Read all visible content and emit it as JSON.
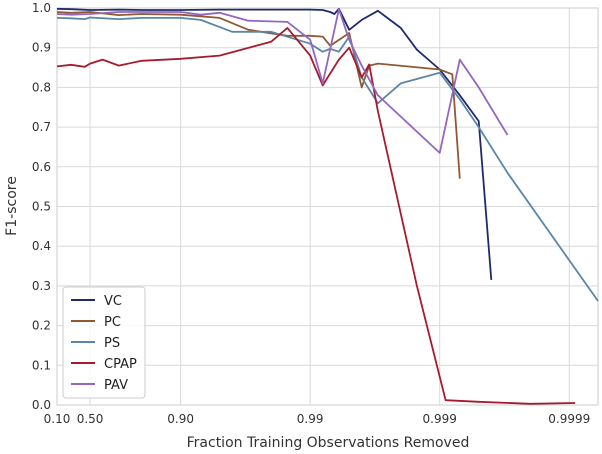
{
  "chart_data": {
    "type": "line",
    "xlabel": "Fraction Training Observations Removed",
    "ylabel": "F1-score",
    "x_scale": "log10(1-x) reversed",
    "xlim": [
      0.1,
      0.99994
    ],
    "ylim": [
      0.0,
      1.0
    ],
    "x_ticks": [
      0.1,
      0.5,
      0.9,
      0.99,
      0.999,
      0.9999
    ],
    "x_tick_labels": [
      "0.10",
      "0.50",
      "0.90",
      "0.99",
      "0.999",
      "0.9999"
    ],
    "y_ticks": [
      0.0,
      0.1,
      0.2,
      0.3,
      0.4,
      0.5,
      0.6,
      0.7,
      0.8,
      0.9,
      1.0
    ],
    "y_tick_labels": [
      "0.0",
      "0.1",
      "0.2",
      "0.3",
      "0.4",
      "0.5",
      "0.6",
      "0.7",
      "0.8",
      "0.9",
      "1.0"
    ],
    "grid": true,
    "legend_position": "bottom-left",
    "series": [
      {
        "name": "VC",
        "color": "#1f2a6e",
        "points": [
          [
            0.1,
            0.998
          ],
          [
            0.3,
            0.997
          ],
          [
            0.5,
            0.995
          ],
          [
            0.7,
            0.996
          ],
          [
            0.8,
            0.995
          ],
          [
            0.9,
            0.995
          ],
          [
            0.95,
            0.996
          ],
          [
            0.98,
            0.996
          ],
          [
            0.99,
            0.996
          ],
          [
            0.992,
            0.995
          ],
          [
            0.993,
            0.99
          ],
          [
            0.9935,
            0.985
          ],
          [
            0.994,
            0.998
          ],
          [
            0.995,
            0.945
          ],
          [
            0.996,
            0.97
          ],
          [
            0.997,
            0.993
          ],
          [
            0.998,
            0.95
          ],
          [
            0.9985,
            0.895
          ],
          [
            0.999,
            0.845
          ],
          [
            0.9993,
            0.78
          ],
          [
            0.9995,
            0.715
          ],
          [
            0.9996,
            0.315
          ]
        ]
      },
      {
        "name": "PC",
        "color": "#8f5a33",
        "points": [
          [
            0.1,
            0.99
          ],
          [
            0.3,
            0.988
          ],
          [
            0.5,
            0.99
          ],
          [
            0.7,
            0.982
          ],
          [
            0.8,
            0.985
          ],
          [
            0.9,
            0.983
          ],
          [
            0.95,
            0.975
          ],
          [
            0.97,
            0.945
          ],
          [
            0.985,
            0.93
          ],
          [
            0.99,
            0.93
          ],
          [
            0.992,
            0.928
          ],
          [
            0.993,
            0.905
          ],
          [
            0.995,
            0.937
          ],
          [
            0.996,
            0.8
          ],
          [
            0.9965,
            0.855
          ],
          [
            0.997,
            0.86
          ],
          [
            0.999,
            0.845
          ],
          [
            0.9992,
            0.833
          ],
          [
            0.9993,
            0.57
          ]
        ]
      },
      {
        "name": "PS",
        "color": "#5b86a8",
        "points": [
          [
            0.1,
            0.975
          ],
          [
            0.3,
            0.974
          ],
          [
            0.45,
            0.972
          ],
          [
            0.5,
            0.976
          ],
          [
            0.7,
            0.972
          ],
          [
            0.8,
            0.975
          ],
          [
            0.9,
            0.975
          ],
          [
            0.93,
            0.97
          ],
          [
            0.96,
            0.94
          ],
          [
            0.98,
            0.94
          ],
          [
            0.99,
            0.91
          ],
          [
            0.992,
            0.89
          ],
          [
            0.993,
            0.897
          ],
          [
            0.994,
            0.89
          ],
          [
            0.995,
            0.928
          ],
          [
            0.996,
            0.825
          ],
          [
            0.997,
            0.76
          ],
          [
            0.998,
            0.81
          ],
          [
            0.999,
            0.837
          ],
          [
            0.9993,
            0.77
          ],
          [
            0.9995,
            0.7
          ],
          [
            0.9997,
            0.585
          ],
          [
            0.99994,
            0.262
          ]
        ]
      },
      {
        "name": "CPAP",
        "color": "#a51c30",
        "points": [
          [
            0.1,
            0.853
          ],
          [
            0.3,
            0.857
          ],
          [
            0.45,
            0.852
          ],
          [
            0.5,
            0.86
          ],
          [
            0.6,
            0.87
          ],
          [
            0.7,
            0.855
          ],
          [
            0.8,
            0.867
          ],
          [
            0.9,
            0.872
          ],
          [
            0.95,
            0.88
          ],
          [
            0.98,
            0.915
          ],
          [
            0.985,
            0.95
          ],
          [
            0.99,
            0.88
          ],
          [
            0.992,
            0.805
          ],
          [
            0.994,
            0.87
          ],
          [
            0.995,
            0.9
          ],
          [
            0.996,
            0.825
          ],
          [
            0.9965,
            0.858
          ],
          [
            0.997,
            0.74
          ],
          [
            0.9985,
            0.3
          ],
          [
            0.9991,
            0.012
          ],
          [
            0.9995,
            0.008
          ],
          [
            0.9998,
            0.003
          ],
          [
            0.99991,
            0.005
          ]
        ]
      },
      {
        "name": "PAV",
        "color": "#9467bd",
        "points": [
          [
            0.1,
            0.985
          ],
          [
            0.3,
            0.983
          ],
          [
            0.5,
            0.985
          ],
          [
            0.7,
            0.99
          ],
          [
            0.8,
            0.99
          ],
          [
            0.9,
            0.99
          ],
          [
            0.93,
            0.983
          ],
          [
            0.95,
            0.988
          ],
          [
            0.97,
            0.968
          ],
          [
            0.985,
            0.965
          ],
          [
            0.99,
            0.92
          ],
          [
            0.992,
            0.81
          ],
          [
            0.994,
            0.997
          ],
          [
            0.995,
            0.92
          ],
          [
            0.996,
            0.855
          ],
          [
            0.997,
            0.78
          ],
          [
            0.999,
            0.635
          ],
          [
            0.9993,
            0.87
          ],
          [
            0.9995,
            0.8
          ],
          [
            0.9997,
            0.68
          ]
        ]
      }
    ]
  }
}
